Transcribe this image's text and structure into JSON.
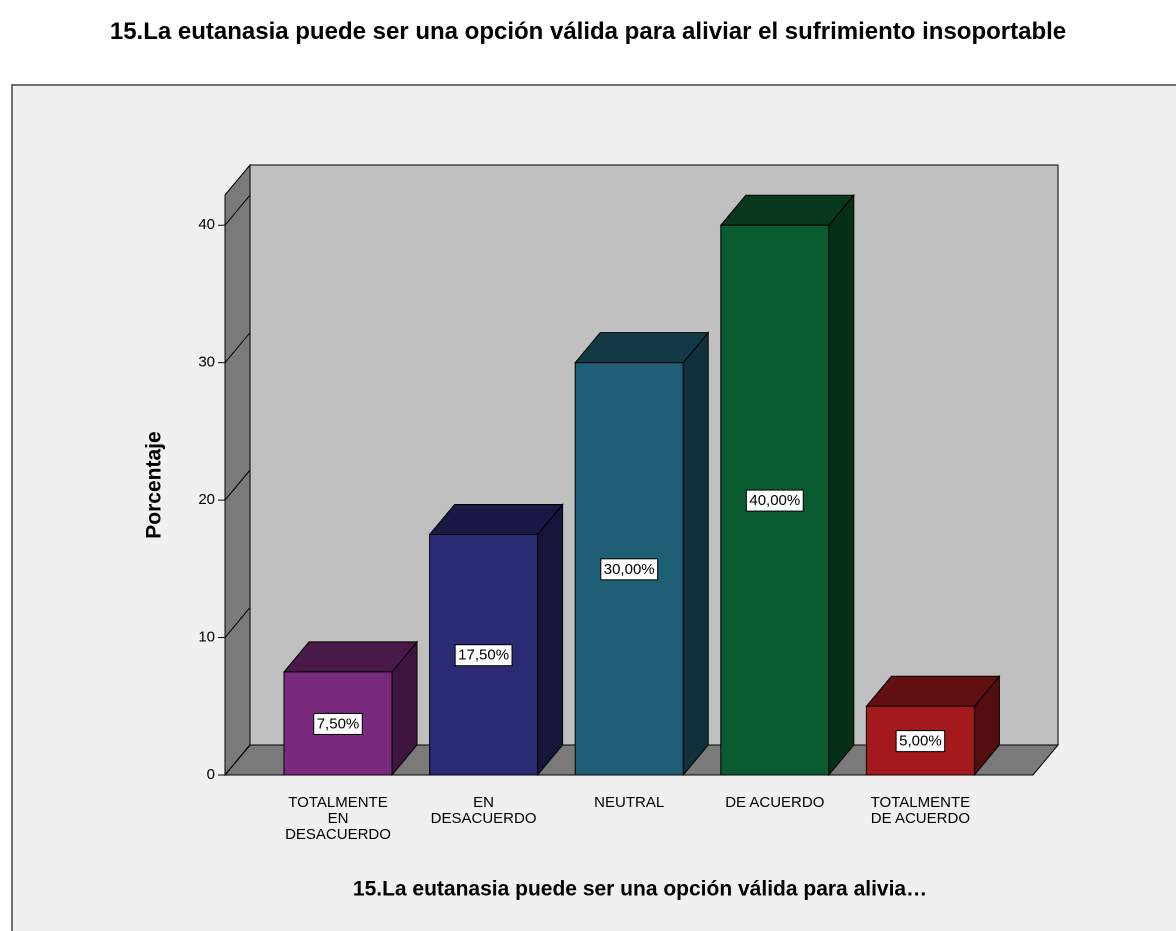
{
  "chart_data": {
    "type": "bar3d",
    "title": "15.La eutanasia puede ser una opción válida para aliviar el sufrimiento insoportable",
    "x_label": "15.La eutanasia puede ser una opción válida para alivia…",
    "y_label": "Porcentaje",
    "categories": [
      "TOTALMENTE EN DESACUERDO",
      "EN DESACUERDO",
      "NEUTRAL",
      "DE ACUERDO",
      "TOTALMENTE DE ACUERDO"
    ],
    "values": [
      7.5,
      17.5,
      30,
      40,
      5
    ],
    "value_labels": [
      "7,50%",
      "17,50%",
      "30,00%",
      "40,00%",
      "5,00%"
    ],
    "colors": [
      "#7a2a7c",
      "#2b2a74",
      "#1f5f76",
      "#0b5b30",
      "#a3191c"
    ],
    "ylim": [
      0,
      42.2
    ],
    "yticks": [
      0,
      10,
      20,
      30,
      40
    ]
  }
}
